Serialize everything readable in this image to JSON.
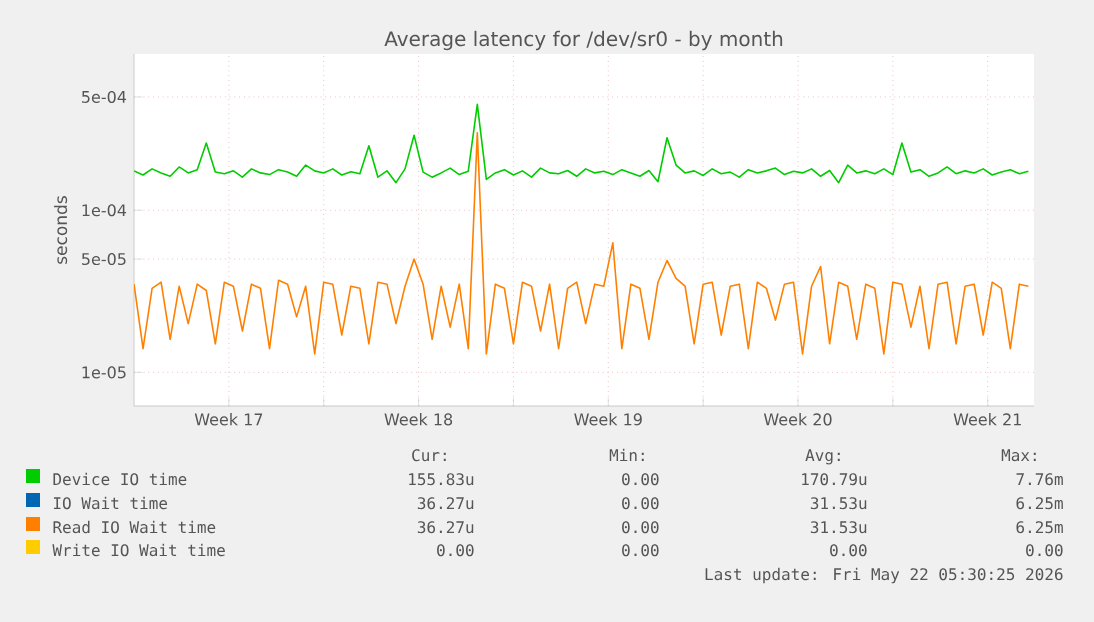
{
  "chart_data": {
    "type": "line",
    "title": "Average latency for /dev/sr0 - by month",
    "ylabel": "seconds",
    "log": "y",
    "grid": true,
    "legend": "bottom",
    "marker": "none",
    "line_style": "solid",
    "xlim": [
      "2026-04-20T00:00",
      "2026-05-23T05:00"
    ],
    "ylim": [
      6.2e-06,
      0.00092
    ],
    "xticks": [
      {
        "value": "2026-04-23T12:00",
        "label": "Week 17"
      },
      {
        "value": "2026-04-27T00:00",
        "label": null
      },
      {
        "value": "2026-04-30T12:00",
        "label": "Week 18"
      },
      {
        "value": "2026-05-04T00:00",
        "label": null
      },
      {
        "value": "2026-05-07T12:00",
        "label": "Week 19"
      },
      {
        "value": "2026-05-11T00:00",
        "label": null
      },
      {
        "value": "2026-05-14T12:00",
        "label": "Week 20"
      },
      {
        "value": "2026-05-18T00:00",
        "label": null
      },
      {
        "value": "2026-05-21T12:00",
        "label": "Week 21"
      }
    ],
    "yticks": [
      {
        "value": 1e-05,
        "label": "1e-05"
      },
      {
        "value": 5e-05,
        "label": "5e-05"
      },
      {
        "value": 0.0001,
        "label": "1e-04"
      },
      {
        "value": 0.0005,
        "label": "5e-04"
      }
    ],
    "x": [
      "2026-04-20T00:00",
      "2026-04-20T08:00",
      "2026-04-20T16:00",
      "2026-04-21T00:00",
      "2026-04-21T08:00",
      "2026-04-21T16:00",
      "2026-04-22T00:00",
      "2026-04-22T08:00",
      "2026-04-22T16:00",
      "2026-04-23T00:00",
      "2026-04-23T08:00",
      "2026-04-23T16:00",
      "2026-04-24T00:00",
      "2026-04-24T08:00",
      "2026-04-24T16:00",
      "2026-04-25T00:00",
      "2026-04-25T08:00",
      "2026-04-25T16:00",
      "2026-04-26T00:00",
      "2026-04-26T08:00",
      "2026-04-26T16:00",
      "2026-04-27T00:00",
      "2026-04-27T08:00",
      "2026-04-27T16:00",
      "2026-04-28T00:00",
      "2026-04-28T08:00",
      "2026-04-28T16:00",
      "2026-04-29T00:00",
      "2026-04-29T08:00",
      "2026-04-29T16:00",
      "2026-04-30T00:00",
      "2026-04-30T08:00",
      "2026-04-30T16:00",
      "2026-05-01T00:00",
      "2026-05-01T08:00",
      "2026-05-01T16:00",
      "2026-05-02T00:00",
      "2026-05-02T08:00",
      "2026-05-02T16:00",
      "2026-05-03T00:00",
      "2026-05-03T08:00",
      "2026-05-03T16:00",
      "2026-05-04T00:00",
      "2026-05-04T08:00",
      "2026-05-04T16:00",
      "2026-05-05T00:00",
      "2026-05-05T08:00",
      "2026-05-05T16:00",
      "2026-05-06T00:00",
      "2026-05-06T08:00",
      "2026-05-06T16:00",
      "2026-05-07T00:00",
      "2026-05-07T08:00",
      "2026-05-07T16:00",
      "2026-05-08T00:00",
      "2026-05-08T08:00",
      "2026-05-08T16:00",
      "2026-05-09T00:00",
      "2026-05-09T08:00",
      "2026-05-09T16:00",
      "2026-05-10T00:00",
      "2026-05-10T08:00",
      "2026-05-10T16:00",
      "2026-05-11T00:00",
      "2026-05-11T08:00",
      "2026-05-11T16:00",
      "2026-05-12T00:00",
      "2026-05-12T08:00",
      "2026-05-12T16:00",
      "2026-05-13T00:00",
      "2026-05-13T08:00",
      "2026-05-13T16:00",
      "2026-05-14T00:00",
      "2026-05-14T08:00",
      "2026-05-14T16:00",
      "2026-05-15T00:00",
      "2026-05-15T08:00",
      "2026-05-15T16:00",
      "2026-05-16T00:00",
      "2026-05-16T08:00",
      "2026-05-16T16:00",
      "2026-05-17T00:00",
      "2026-05-17T08:00",
      "2026-05-17T16:00",
      "2026-05-18T00:00",
      "2026-05-18T08:00",
      "2026-05-18T16:00",
      "2026-05-19T00:00",
      "2026-05-19T08:00",
      "2026-05-19T16:00",
      "2026-05-20T00:00",
      "2026-05-20T08:00",
      "2026-05-20T16:00",
      "2026-05-21T00:00",
      "2026-05-21T08:00",
      "2026-05-21T16:00",
      "2026-05-22T00:00",
      "2026-05-22T08:00",
      "2026-05-22T16:00",
      "2026-05-23T00:00"
    ],
    "series": [
      {
        "name": "Device IO time",
        "color": "#00cc00",
        "values": [
          0.000175,
          0.000165,
          0.00018,
          0.00017,
          0.000162,
          0.000185,
          0.00017,
          0.000178,
          0.00026,
          0.000172,
          0.000168,
          0.000175,
          0.00016,
          0.00018,
          0.00017,
          0.000166,
          0.000178,
          0.000172,
          0.000162,
          0.00019,
          0.000175,
          0.00017,
          0.00018,
          0.000165,
          0.000173,
          0.000168,
          0.00025,
          0.00016,
          0.000175,
          0.000148,
          0.00018,
          0.00029,
          0.000172,
          0.00016,
          0.00017,
          0.000182,
          0.000166,
          0.000174,
          0.00045,
          0.000155,
          0.00017,
          0.000178,
          0.000165,
          0.000175,
          0.00016,
          0.000182,
          0.00017,
          0.000168,
          0.000176,
          0.000162,
          0.00018,
          0.00017,
          0.000174,
          0.000166,
          0.000178,
          0.00017,
          0.000162,
          0.000176,
          0.00015,
          0.00028,
          0.00019,
          0.00017,
          0.000175,
          0.000164,
          0.00018,
          0.000168,
          0.000172,
          0.00016,
          0.000178,
          0.00017,
          0.000175,
          0.000182,
          0.000166,
          0.000174,
          0.00017,
          0.00018,
          0.000162,
          0.000176,
          0.000148,
          0.00019,
          0.00017,
          0.000175,
          0.000168,
          0.00018,
          0.000166,
          0.00026,
          0.000172,
          0.000178,
          0.000162,
          0.00017,
          0.000185,
          0.000168,
          0.000175,
          0.00017,
          0.00018,
          0.000165,
          0.000172,
          0.000178,
          0.000168,
          0.000174
        ]
      },
      {
        "name": "IO Wait time",
        "color": "#0066b3",
        "values": [
          null,
          null,
          null,
          null,
          null,
          null,
          null,
          null,
          null,
          null,
          null,
          null,
          null,
          null,
          null,
          null,
          null,
          null,
          null,
          null,
          null,
          null,
          null,
          null,
          null,
          null,
          null,
          null,
          null,
          null,
          null,
          null,
          null,
          null,
          null,
          null,
          null,
          null,
          null,
          null,
          null,
          null,
          null,
          null,
          null,
          null,
          null,
          null,
          null,
          null,
          null,
          null,
          null,
          null,
          null,
          null,
          null,
          null,
          null,
          null,
          null,
          null,
          null,
          null,
          null,
          null,
          null,
          null,
          null,
          null,
          null,
          null,
          null,
          null,
          null,
          null,
          null,
          null,
          null,
          null,
          null,
          null,
          null,
          null,
          null,
          null,
          null,
          null,
          null,
          null,
          null,
          null,
          null,
          null,
          null,
          null,
          null,
          null,
          null,
          null
        ]
      },
      {
        "name": "Read IO Wait time",
        "color": "#ff8000",
        "values": [
          3.5e-05,
          1.4e-05,
          3.3e-05,
          3.6e-05,
          1.6e-05,
          3.4e-05,
          2e-05,
          3.5e-05,
          3.2e-05,
          1.5e-05,
          3.6e-05,
          3.4e-05,
          1.8e-05,
          3.5e-05,
          3.3e-05,
          1.4e-05,
          3.7e-05,
          3.5e-05,
          2.2e-05,
          3.4e-05,
          1.3e-05,
          3.6e-05,
          3.5e-05,
          1.7e-05,
          3.4e-05,
          3.3e-05,
          1.5e-05,
          3.6e-05,
          3.5e-05,
          2e-05,
          3.4e-05,
          5e-05,
          3.5e-05,
          1.6e-05,
          3.4e-05,
          1.9e-05,
          3.5e-05,
          1.4e-05,
          0.0003,
          1.3e-05,
          3.5e-05,
          3.3e-05,
          1.5e-05,
          3.6e-05,
          3.4e-05,
          1.8e-05,
          3.5e-05,
          1.4e-05,
          3.3e-05,
          3.6e-05,
          2e-05,
          3.5e-05,
          3.4e-05,
          6.3e-05,
          1.4e-05,
          3.5e-05,
          3.3e-05,
          1.6e-05,
          3.6e-05,
          4.9e-05,
          3.8e-05,
          3.4e-05,
          1.5e-05,
          3.5e-05,
          3.6e-05,
          1.7e-05,
          3.4e-05,
          3.5e-05,
          1.4e-05,
          3.6e-05,
          3.3e-05,
          2.1e-05,
          3.5e-05,
          3.6e-05,
          1.3e-05,
          3.4e-05,
          4.5e-05,
          1.5e-05,
          3.6e-05,
          3.4e-05,
          1.6e-05,
          3.5e-05,
          3.3e-05,
          1.3e-05,
          3.6e-05,
          3.5e-05,
          1.9e-05,
          3.4e-05,
          1.4e-05,
          3.5e-05,
          3.6e-05,
          1.5e-05,
          3.4e-05,
          3.5e-05,
          1.7e-05,
          3.6e-05,
          3.3e-05,
          1.4e-05,
          3.5e-05,
          3.4e-05
        ]
      },
      {
        "name": "Write IO Wait time",
        "color": "#ffcc00",
        "values": [
          null,
          null,
          null,
          null,
          null,
          null,
          null,
          null,
          null,
          null,
          null,
          null,
          null,
          null,
          null,
          null,
          null,
          null,
          null,
          null,
          null,
          null,
          null,
          null,
          null,
          null,
          null,
          null,
          null,
          null,
          null,
          null,
          null,
          null,
          null,
          null,
          null,
          null,
          null,
          null,
          null,
          null,
          null,
          null,
          null,
          null,
          null,
          null,
          null,
          null,
          null,
          null,
          null,
          null,
          null,
          null,
          null,
          null,
          null,
          null,
          null,
          null,
          null,
          null,
          null,
          null,
          null,
          null,
          null,
          null,
          null,
          null,
          null,
          null,
          null,
          null,
          null,
          null,
          null,
          null,
          null,
          null,
          null,
          null,
          null,
          null,
          null,
          null,
          null,
          null,
          null,
          null,
          null,
          null,
          null,
          null,
          null,
          null,
          null,
          null
        ]
      }
    ],
    "annotations": [
      "Cur:",
      "Min:",
      "Avg:",
      "Max:",
      "155.83u",
      "0.00",
      "170.79u",
      "7.76m",
      "36.27u",
      "0.00",
      "31.53u",
      "6.25m",
      "36.27u",
      "0.00",
      "31.53u",
      "6.25m",
      "0.00",
      "0.00",
      "0.00",
      "0.00",
      "Last update: Fri May 22 05:30:25 2026"
    ]
  }
}
